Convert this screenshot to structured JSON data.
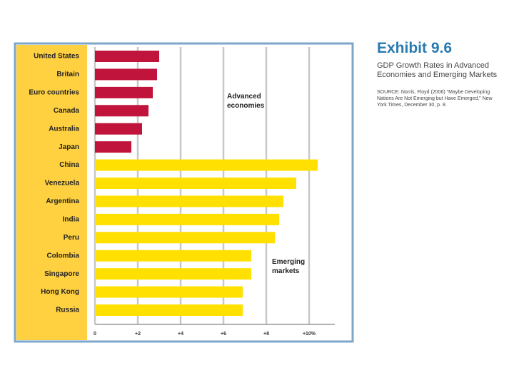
{
  "chart_data": {
    "type": "hbar",
    "title": "Exhibit 9.6",
    "subtitle": "GDP Growth Rates in Advanced Economies and Emerging Markets",
    "source": "SOURCE: Norris, Floyd (2006) \"Maybe Developing Nations Are Not Emerging but Have Emerged,\" New York Times, December 30, p. 8.",
    "categories": [
      "United States",
      "Britain",
      "Euro countries",
      "Canada",
      "Australia",
      "Japan",
      "China",
      "Venezuela",
      "Argentina",
      "India",
      "Peru",
      "Colombia",
      "Singapore",
      "Hong Kong",
      "Russia"
    ],
    "series": [
      {
        "name": "Advanced economies",
        "color": "#c0143c",
        "values": [
          3.0,
          2.9,
          2.7,
          2.5,
          2.2,
          1.7,
          null,
          null,
          null,
          null,
          null,
          null,
          null,
          null,
          null
        ]
      },
      {
        "name": "Emerging markets",
        "color": "#ffe000",
        "values": [
          null,
          null,
          null,
          null,
          null,
          null,
          10.4,
          9.4,
          8.8,
          8.6,
          8.4,
          7.3,
          7.3,
          6.9,
          6.9
        ]
      }
    ],
    "xlim": [
      0,
      11.2
    ],
    "xticks": [
      0,
      {
        "value": 2,
        "label": "+2"
      },
      {
        "value": 4,
        "label": "+4"
      },
      {
        "value": 6,
        "label": "+6"
      },
      {
        "value": 8,
        "label": "+8"
      },
      {
        "value": 10,
        "label": "+10%"
      }
    ],
    "grid": true
  }
}
